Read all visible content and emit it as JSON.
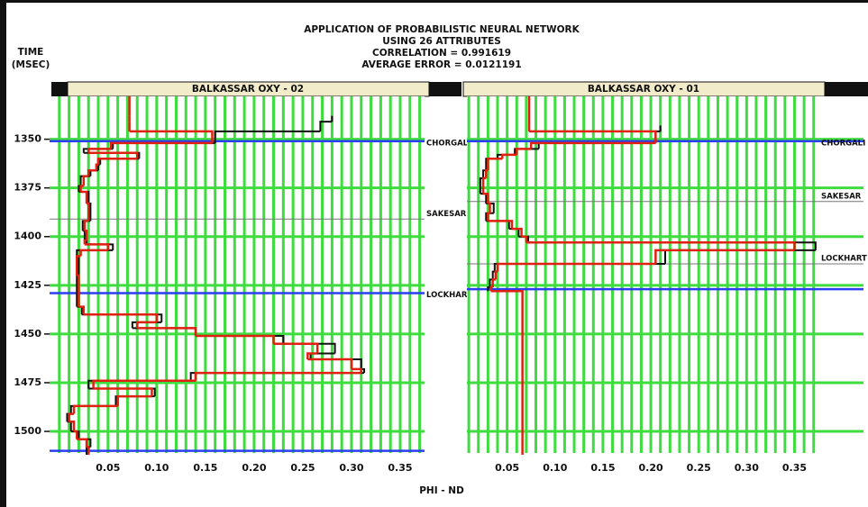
{
  "header": {
    "lines": [
      "APPLICATION OF PROBABILISTIC NEURAL NETWORK",
      "USING 26 ATTRIBUTES",
      "CORRELATION = 0.991619",
      "AVERAGE ERROR = 0.0121191"
    ]
  },
  "axis_labels": {
    "x": "PHI - ND",
    "y": [
      "TIME",
      "(MSEC)"
    ]
  },
  "chart_data": [
    {
      "type": "step",
      "title": "BALKASSAR OXY - 02",
      "y": [
        1328,
        1338,
        1341,
        1346,
        1352,
        1355,
        1357,
        1360,
        1363,
        1366,
        1369,
        1374,
        1377,
        1383,
        1392,
        1397,
        1402,
        1404,
        1407,
        1410,
        1420,
        1436,
        1440,
        1444,
        1447,
        1451,
        1455,
        1460,
        1463,
        1468,
        1470,
        1474,
        1478,
        1482,
        1487,
        1491,
        1495,
        1500,
        1504,
        1508
      ],
      "series": [
        {
          "color": "#111111",
          "values": [
            null,
            0.28,
            0.268,
            0.16,
            0.055,
            0.025,
            0.082,
            0.042,
            0.04,
            0.032,
            0.022,
            0.02,
            0.03,
            0.032,
            0.024,
            0.026,
            0.028,
            0.055,
            0.018,
            0.02,
            0.018,
            0.023,
            0.105,
            0.075,
            0.14,
            0.23,
            0.283,
            0.258,
            0.31,
            0.313,
            0.135,
            0.03,
            0.098,
            0.058,
            0.012,
            0.008,
            0.012,
            0.02,
            0.032,
            0.028
          ]
        },
        {
          "color": "#e02010",
          "values": [
            0.072,
            0.072,
            0.072,
            0.157,
            0.053,
            0.03,
            0.08,
            0.04,
            0.038,
            0.03,
            0.025,
            0.022,
            0.028,
            0.03,
            0.026,
            0.028,
            0.026,
            0.05,
            0.022,
            0.018,
            0.02,
            0.025,
            0.1,
            0.08,
            0.14,
            0.22,
            0.265,
            0.255,
            0.3,
            0.31,
            0.14,
            0.035,
            0.095,
            0.06,
            0.015,
            0.01,
            0.015,
            0.018,
            0.028,
            0.03
          ]
        }
      ],
      "xlim": [
        -0.01,
        0.375
      ],
      "xticks": [
        0.05,
        {
          "value": 0.1,
          "label": "0.10"
        },
        0.15,
        {
          "value": 0.2,
          "label": "0.20"
        },
        0.25,
        {
          "value": 0.3,
          "label": "0.30"
        },
        0.35
      ],
      "xgrid": [
        0,
        0.01,
        0.02,
        0.03,
        0.04,
        0.05,
        0.06,
        0.07,
        0.08,
        0.09,
        0.1,
        0.11,
        0.12,
        0.13,
        0.14,
        0.15,
        0.16,
        0.17,
        0.18,
        0.19,
        0.2,
        0.21,
        0.22,
        0.23,
        0.24,
        0.25,
        0.26,
        0.27,
        0.28,
        0.29,
        0.3,
        0.31,
        0.32,
        0.33,
        0.34,
        0.35,
        0.36,
        0.37
      ],
      "ylim": [
        1328,
        1512
      ],
      "yticks": [
        1350,
        1375,
        1400,
        1425,
        1450,
        1475,
        1500
      ],
      "ytick_labels": true,
      "markers": [
        {
          "label": "CHORGALI",
          "value": 1351,
          "style": "blue"
        },
        {
          "label": "SAKESAR",
          "value": 1391,
          "style": "thin"
        },
        {
          "label": "LOCKHART",
          "value": 1429,
          "style": "blue"
        },
        {
          "value": 1510,
          "style": "blue"
        }
      ]
    },
    {
      "type": "step",
      "title": "BALKASSAR OXY - 01",
      "y": [
        1328,
        1343,
        1346,
        1352,
        1355,
        1358,
        1360,
        1366,
        1370,
        1378,
        1383,
        1388,
        1392,
        1396,
        1400,
        1403,
        1407,
        1414,
        1418,
        1422,
        1426,
        1428
      ],
      "series": [
        {
          "color": "#111111",
          "values": [
            null,
            0.21,
            0.205,
            0.083,
            0.058,
            0.04,
            0.028,
            0.025,
            0.022,
            0.028,
            0.036,
            0.028,
            0.052,
            0.062,
            0.072,
            0.372,
            0.215,
            0.037,
            0.035,
            0.032,
            0.03,
            null
          ]
        },
        {
          "color": "#e02010",
          "values": [
            0.073,
            0.073,
            0.205,
            0.075,
            0.06,
            0.045,
            0.03,
            0.028,
            0.025,
            0.03,
            0.032,
            0.03,
            0.055,
            0.065,
            0.07,
            0.35,
            0.205,
            0.04,
            0.038,
            0.035,
            0.033,
            0.066
          ]
        }
      ],
      "xlim": [
        0.008,
        0.422
      ],
      "xticks": [
        0.05,
        {
          "value": 0.1,
          "label": "0.10"
        },
        0.15,
        {
          "value": 0.2,
          "label": "0.20"
        },
        0.25,
        {
          "value": 0.3,
          "label": "0.30"
        },
        0.35
      ],
      "xgrid": [
        0.01,
        0.02,
        0.03,
        0.04,
        0.05,
        0.06,
        0.07,
        0.08,
        0.09,
        0.1,
        0.11,
        0.12,
        0.13,
        0.14,
        0.15,
        0.16,
        0.17,
        0.18,
        0.19,
        0.2,
        0.21,
        0.22,
        0.23,
        0.24,
        0.25,
        0.26,
        0.27,
        0.28,
        0.29,
        0.3,
        0.31,
        0.32,
        0.33,
        0.34,
        0.35,
        0.36,
        0.37
      ],
      "ylim": [
        1328,
        1512
      ],
      "yticks": [
        1350,
        1375,
        1400,
        1425,
        1450,
        1475,
        1500
      ],
      "ytick_labels": false,
      "markers": [
        {
          "label": "CHORGALI",
          "value": 1351,
          "style": "blue"
        },
        {
          "label": "SAKESAR",
          "value": 1382,
          "style": "thin"
        },
        {
          "label": "LOCKHART",
          "value": 1414,
          "style": "thin"
        },
        {
          "value": 1427,
          "style": "blue"
        }
      ]
    }
  ]
}
